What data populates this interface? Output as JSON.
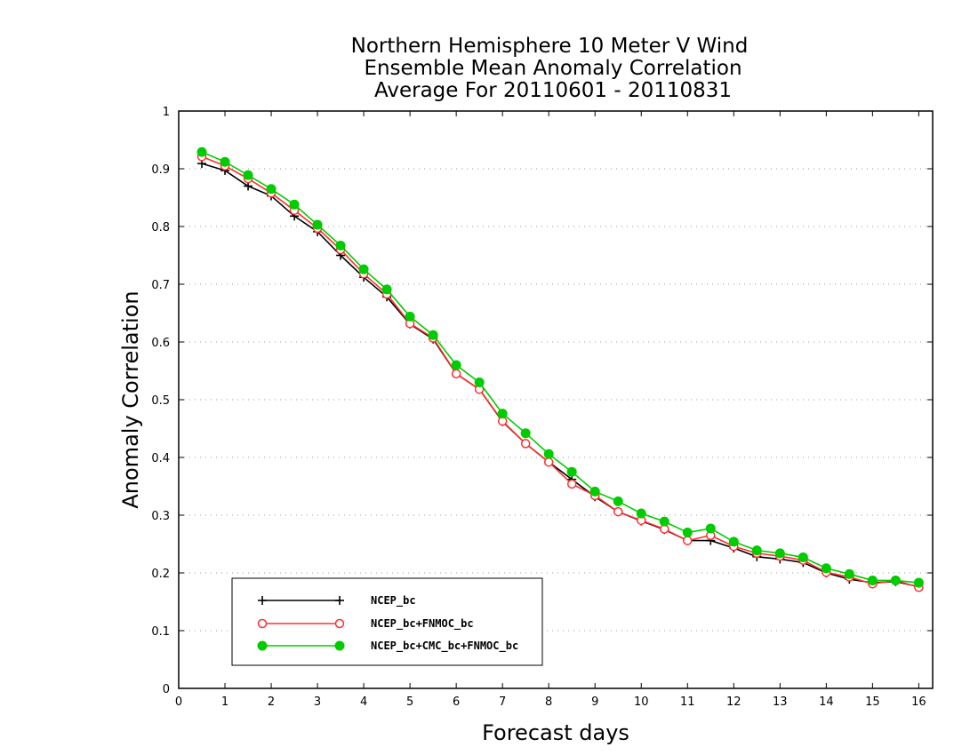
{
  "chart_data": {
    "type": "line",
    "title_lines": [
      "Northern Hemisphere 10 Meter V Wind",
      "Ensemble Mean Anomaly Correlation",
      "Average For 20110601 - 20110831"
    ],
    "xlabel": "Forecast days",
    "ylabel": "Anomaly Correlation",
    "xlim": [
      0,
      16.3
    ],
    "ylim": [
      0,
      1
    ],
    "x_ticks": [
      "0",
      "1",
      "2",
      "3",
      "4",
      "5",
      "6",
      "7",
      "8",
      "9",
      "10",
      "11",
      "12",
      "13",
      "14",
      "15",
      "16"
    ],
    "y_ticks": [
      "0",
      "0.1",
      "0.2",
      "0.3",
      "0.4",
      "0.5",
      "0.6",
      "0.7",
      "0.8",
      "0.9",
      "1"
    ],
    "grid": "horizontal dotted",
    "legend_position": "bottom-left",
    "x": [
      0.5,
      1,
      1.5,
      2,
      2.5,
      3,
      3.5,
      4,
      4.5,
      5,
      5.5,
      6,
      6.5,
      7,
      7.5,
      8,
      8.5,
      9,
      9.5,
      10,
      10.5,
      11,
      11.5,
      12,
      12.5,
      13,
      13.5,
      14,
      14.5,
      15,
      15.5,
      16
    ],
    "series": [
      {
        "name": "NCEP_bc",
        "color": "#000000",
        "marker": "plus",
        "values": [
          0.909,
          0.897,
          0.87,
          0.853,
          0.818,
          0.791,
          0.75,
          0.712,
          0.678,
          0.631,
          0.605,
          0.545,
          0.518,
          0.462,
          0.424,
          0.392,
          0.362,
          0.332,
          0.306,
          0.29,
          0.275,
          0.256,
          0.256,
          0.243,
          0.228,
          0.224,
          0.218,
          0.2,
          0.189,
          0.183,
          0.185,
          0.176
        ]
      },
      {
        "name": "NCEP_bc+FNMOC_bc",
        "color": "#ff3030",
        "marker": "open-circle",
        "values": [
          0.921,
          0.905,
          0.883,
          0.858,
          0.828,
          0.797,
          0.76,
          0.718,
          0.683,
          0.632,
          0.607,
          0.545,
          0.518,
          0.463,
          0.424,
          0.392,
          0.354,
          0.334,
          0.306,
          0.291,
          0.276,
          0.256,
          0.265,
          0.246,
          0.234,
          0.229,
          0.222,
          0.201,
          0.193,
          0.181,
          0.187,
          0.175
        ]
      },
      {
        "name": "NCEP_bc+CMC_bc+FNMOC_bc",
        "color": "#00cc00",
        "marker": "filled-circle",
        "values": [
          0.929,
          0.912,
          0.889,
          0.865,
          0.838,
          0.803,
          0.767,
          0.726,
          0.691,
          0.644,
          0.612,
          0.56,
          0.53,
          0.476,
          0.442,
          0.406,
          0.375,
          0.341,
          0.324,
          0.303,
          0.289,
          0.27,
          0.277,
          0.254,
          0.239,
          0.234,
          0.227,
          0.208,
          0.198,
          0.187,
          0.187,
          0.183
        ]
      }
    ]
  }
}
